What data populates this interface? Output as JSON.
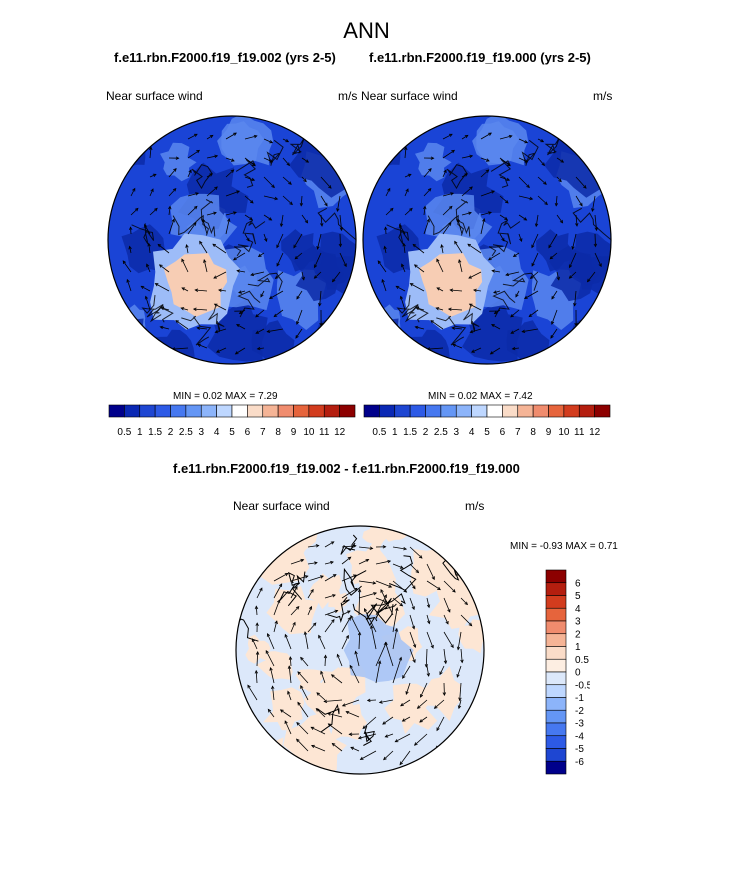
{
  "figure": {
    "title": "ANN"
  },
  "panels": [
    {
      "id": "left",
      "title": "f.e11.rbn.F2000.f19_f19.002 (yrs 2-5)",
      "left_label": "Near surface wind",
      "right_label": "m/s",
      "min_label": "MIN = ",
      "min_value": "0.02",
      "max_label": "MAX = ",
      "max_value": "7.29"
    },
    {
      "id": "right",
      "title": "f.e11.rbn.F2000.f19_f19.000 (yrs 2-5)",
      "left_label": "Near surface wind",
      "right_label": "m/s",
      "min_label": "MIN = ",
      "min_value": "0.02",
      "max_label": "MAX = ",
      "max_value": "7.42"
    },
    {
      "id": "diff",
      "title": "f.e11.rbn.F2000.f19_f19.002 - f.e11.rbn.F2000.f19_f19.000",
      "left_label": "Near surface wind",
      "right_label": "m/s",
      "min_label": "MIN = ",
      "min_value": "-0.93",
      "max_label": "MAX = ",
      "max_value": "0.71"
    }
  ],
  "colorbars": {
    "wind": {
      "labels": [
        "0.5",
        "1",
        "1.5",
        "2",
        "2.5",
        "3",
        "4",
        "5",
        "6",
        "7",
        "8",
        "9",
        "10",
        "11",
        "12"
      ],
      "colors": [
        "#00008b",
        "#0a28b4",
        "#1e46d2",
        "#2d5ae6",
        "#4678f0",
        "#6496f5",
        "#8cb4fa",
        "#bed7ff",
        "#ffffff",
        "#fadcc8",
        "#f5b496",
        "#f08c6e",
        "#e6643c",
        "#d23c1e",
        "#b41e0f",
        "#8c0000"
      ]
    },
    "diff": {
      "labels": [
        "6",
        "5",
        "4",
        "3",
        "2",
        "1",
        "0.5",
        "0",
        "-0.5",
        "-1",
        "-2",
        "-3",
        "-4",
        "-5",
        "-6"
      ],
      "colors": [
        "#8c0000",
        "#b41e0f",
        "#d23c1e",
        "#e6643c",
        "#f08c6e",
        "#f5b496",
        "#fadcc8",
        "#fdeee2",
        "#dce8fa",
        "#bed7ff",
        "#8cb4fa",
        "#6496f5",
        "#4678f0",
        "#2d5ae6",
        "#1e46d2",
        "#00008b"
      ]
    }
  },
  "map_colors": {
    "wind_base": "#1a44d6",
    "wind_dark": "#0c2aa8",
    "wind_light": "#5b87ef",
    "wind_pale": "#9dbcf8",
    "wind_warm": "#f7cdb4",
    "diff_base": "#dce8fa",
    "diff_warm": "#fde6d4",
    "diff_blue": "#a9c4f5"
  }
}
